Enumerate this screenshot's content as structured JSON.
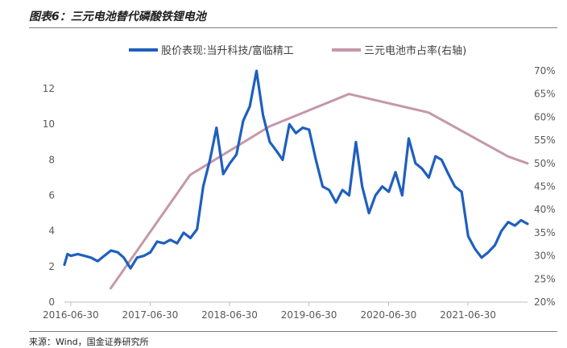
{
  "title": "图表6：三元电池替代磷酸铁锂电池",
  "source": "来源：Wind，国金证券研究所",
  "chart_data": {
    "type": "line",
    "title": "图表6：三元电池替代磷酸铁锂电池",
    "legend_position": "top",
    "grid": false,
    "x_axis": {
      "type": "date",
      "range": [
        "2016-06-01",
        "2022-03-31"
      ],
      "tick_labels": [
        "2016-06-30",
        "2017-06-30",
        "2018-06-30",
        "2019-06-30",
        "2020-06-30",
        "2021-06-30"
      ]
    },
    "y_axis_left": {
      "range": [
        0,
        13
      ],
      "tick_labels": [
        "0",
        "2",
        "4",
        "6",
        "8",
        "10",
        "12"
      ]
    },
    "y_axis_right": {
      "range": [
        0.2,
        0.7
      ],
      "tick_labels": [
        "20%",
        "25%",
        "30%",
        "35%",
        "40%",
        "45%",
        "50%",
        "55%",
        "60%",
        "65%",
        "70%"
      ]
    },
    "series": [
      {
        "name": "股价表现:当升科技/富临精工",
        "axis": "left",
        "color": "#1f5fbf",
        "x": [
          "2016-06-01",
          "2016-06-15",
          "2016-07-01",
          "2016-08-01",
          "2016-09-01",
          "2016-10-01",
          "2016-11-01",
          "2016-12-01",
          "2017-01-01",
          "2017-02-01",
          "2017-03-01",
          "2017-04-01",
          "2017-05-01",
          "2017-06-01",
          "2017-07-01",
          "2017-08-01",
          "2017-09-01",
          "2017-10-01",
          "2017-11-01",
          "2017-12-01",
          "2018-01-01",
          "2018-02-01",
          "2018-03-01",
          "2018-04-01",
          "2018-05-01",
          "2018-06-01",
          "2018-07-01",
          "2018-08-01",
          "2018-09-01",
          "2018-10-01",
          "2018-11-01",
          "2018-12-01",
          "2019-01-01",
          "2019-02-01",
          "2019-03-01",
          "2019-04-01",
          "2019-05-01",
          "2019-06-01",
          "2019-07-01",
          "2019-08-01",
          "2019-09-01",
          "2019-10-01",
          "2019-11-01",
          "2019-12-01",
          "2020-01-01",
          "2020-02-01",
          "2020-03-01",
          "2020-04-01",
          "2020-05-01",
          "2020-06-01",
          "2020-07-01",
          "2020-08-01",
          "2020-09-01",
          "2020-10-01",
          "2020-11-01",
          "2020-12-01",
          "2021-01-01",
          "2021-02-01",
          "2021-03-01",
          "2021-04-01",
          "2021-05-01",
          "2021-06-01",
          "2021-07-01",
          "2021-08-01",
          "2021-09-01",
          "2021-10-01",
          "2021-11-01",
          "2021-12-01",
          "2022-01-01",
          "2022-02-01",
          "2022-03-01",
          "2022-03-31"
        ],
        "values": [
          2.1,
          2.7,
          2.6,
          2.7,
          2.6,
          2.5,
          2.3,
          2.6,
          2.9,
          2.8,
          2.5,
          1.9,
          2.5,
          2.6,
          2.8,
          3.4,
          3.3,
          3.5,
          3.3,
          3.9,
          3.6,
          4.1,
          6.5,
          8.0,
          9.8,
          7.2,
          7.8,
          8.3,
          10.2,
          11.0,
          13.0,
          10.5,
          9.0,
          8.5,
          8.0,
          10.0,
          9.5,
          9.8,
          9.7,
          8.0,
          6.5,
          6.3,
          5.6,
          6.3,
          6.0,
          9.0,
          6.5,
          5.0,
          6.0,
          6.5,
          6.2,
          7.3,
          6.0,
          9.2,
          7.8,
          7.5,
          7.0,
          8.2,
          8.0,
          7.2,
          6.5,
          6.2,
          3.7,
          3.0,
          2.5,
          2.8,
          3.2,
          4.0,
          4.5,
          4.3,
          4.6,
          4.4
        ]
      },
      {
        "name": "三元电池市占率(右轴)",
        "axis": "right",
        "color": "#c597aa",
        "x": [
          "2016-12-31",
          "2017-12-31",
          "2018-12-31",
          "2019-12-31",
          "2020-12-31",
          "2021-12-31",
          "2022-03-31"
        ],
        "values": [
          0.23,
          0.475,
          0.58,
          0.65,
          0.61,
          0.515,
          0.5
        ]
      }
    ]
  }
}
